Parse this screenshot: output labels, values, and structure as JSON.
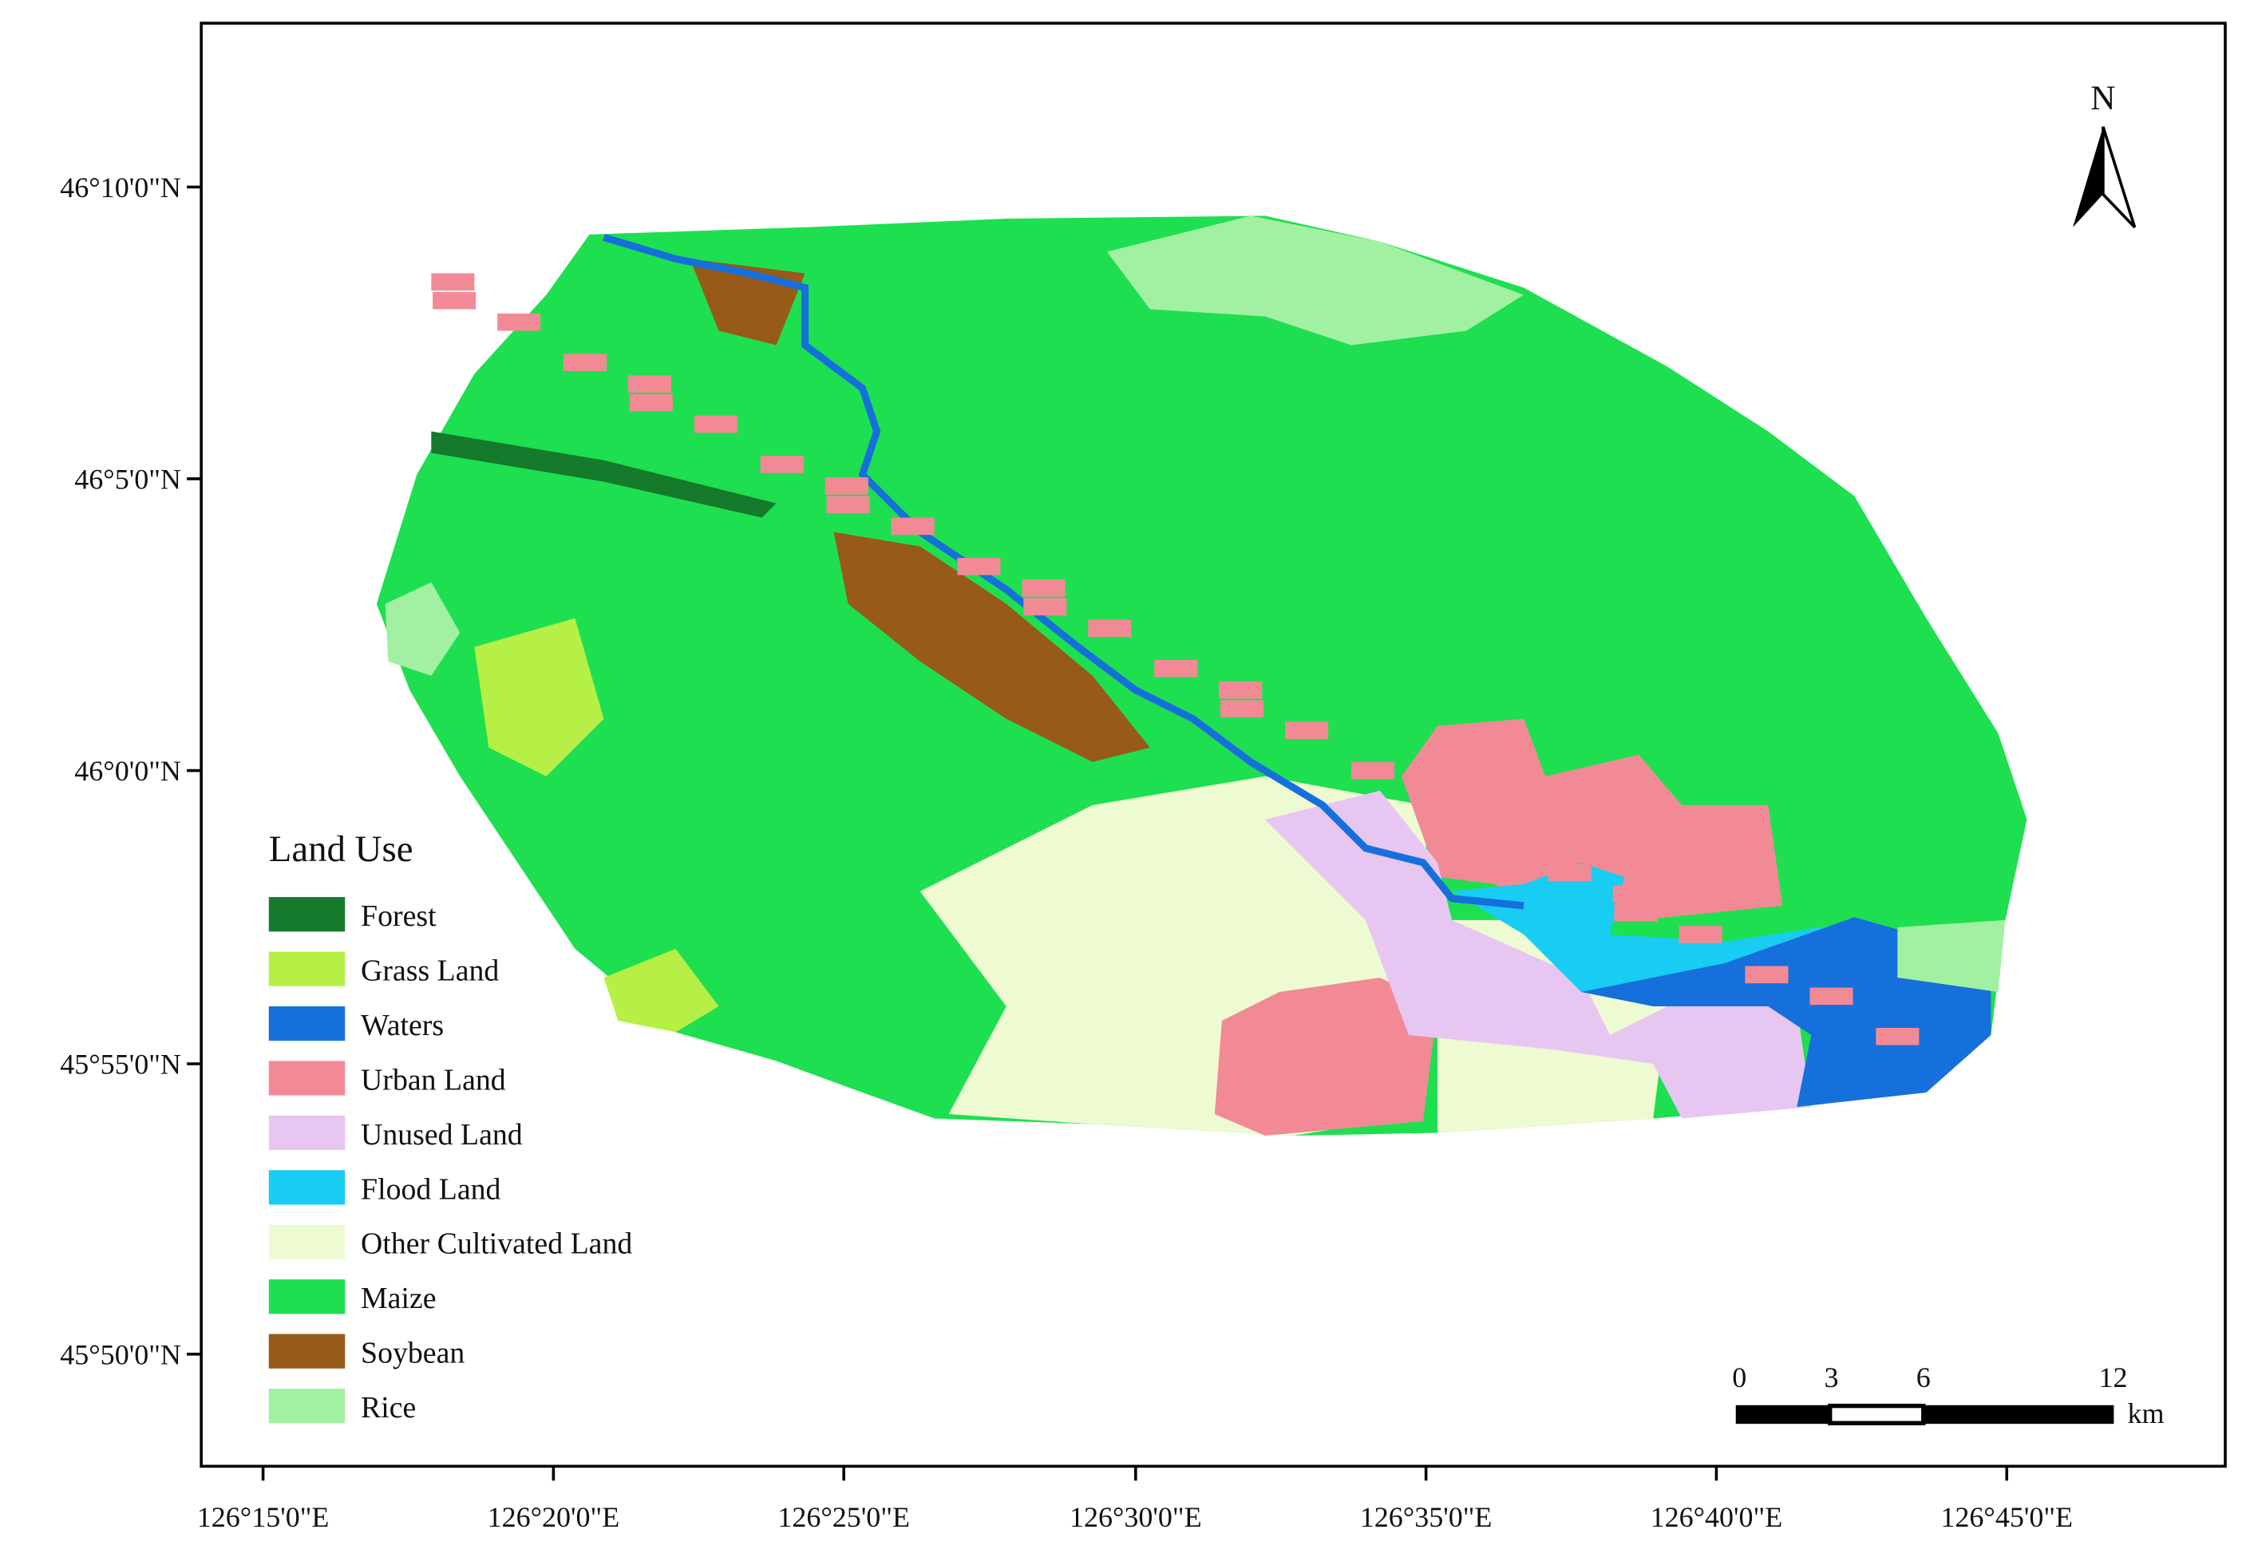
{
  "map": {
    "lat_labels": [
      "46°10'0\"N",
      "46°5'0\"N",
      "46°0'0\"N",
      "45°55'0\"N",
      "45°50'0\"N"
    ],
    "lon_labels": [
      "126°15'0\"E",
      "126°20'0\"E",
      "126°25'0\"E",
      "126°30'0\"E",
      "126°35'0\"E",
      "126°40'0\"E",
      "126°45'0\"E"
    ],
    "north": "N",
    "scale_bar": {
      "ticks": [
        "0",
        "3",
        "6",
        "12"
      ],
      "unit": "km"
    },
    "legend": {
      "title": "Land Use",
      "items": [
        {
          "label": "Forest",
          "color": "#167a2c"
        },
        {
          "label": "Grass Land",
          "color": "#b6f046"
        },
        {
          "label": "Waters",
          "color": "#1670dc"
        },
        {
          "label": "Urban Land",
          "color": "#f28a96"
        },
        {
          "label": "Unused Land",
          "color": "#e8c6f2"
        },
        {
          "label": "Flood Land",
          "color": "#18ccf2"
        },
        {
          "label": "Other Cultivated Land",
          "color": "#eefad2"
        },
        {
          "label": "Maize",
          "color": "#1edf50"
        },
        {
          "label": "Soybean",
          "color": "#975a18"
        },
        {
          "label": "Rice",
          "color": "#a2f0a2"
        }
      ]
    }
  }
}
